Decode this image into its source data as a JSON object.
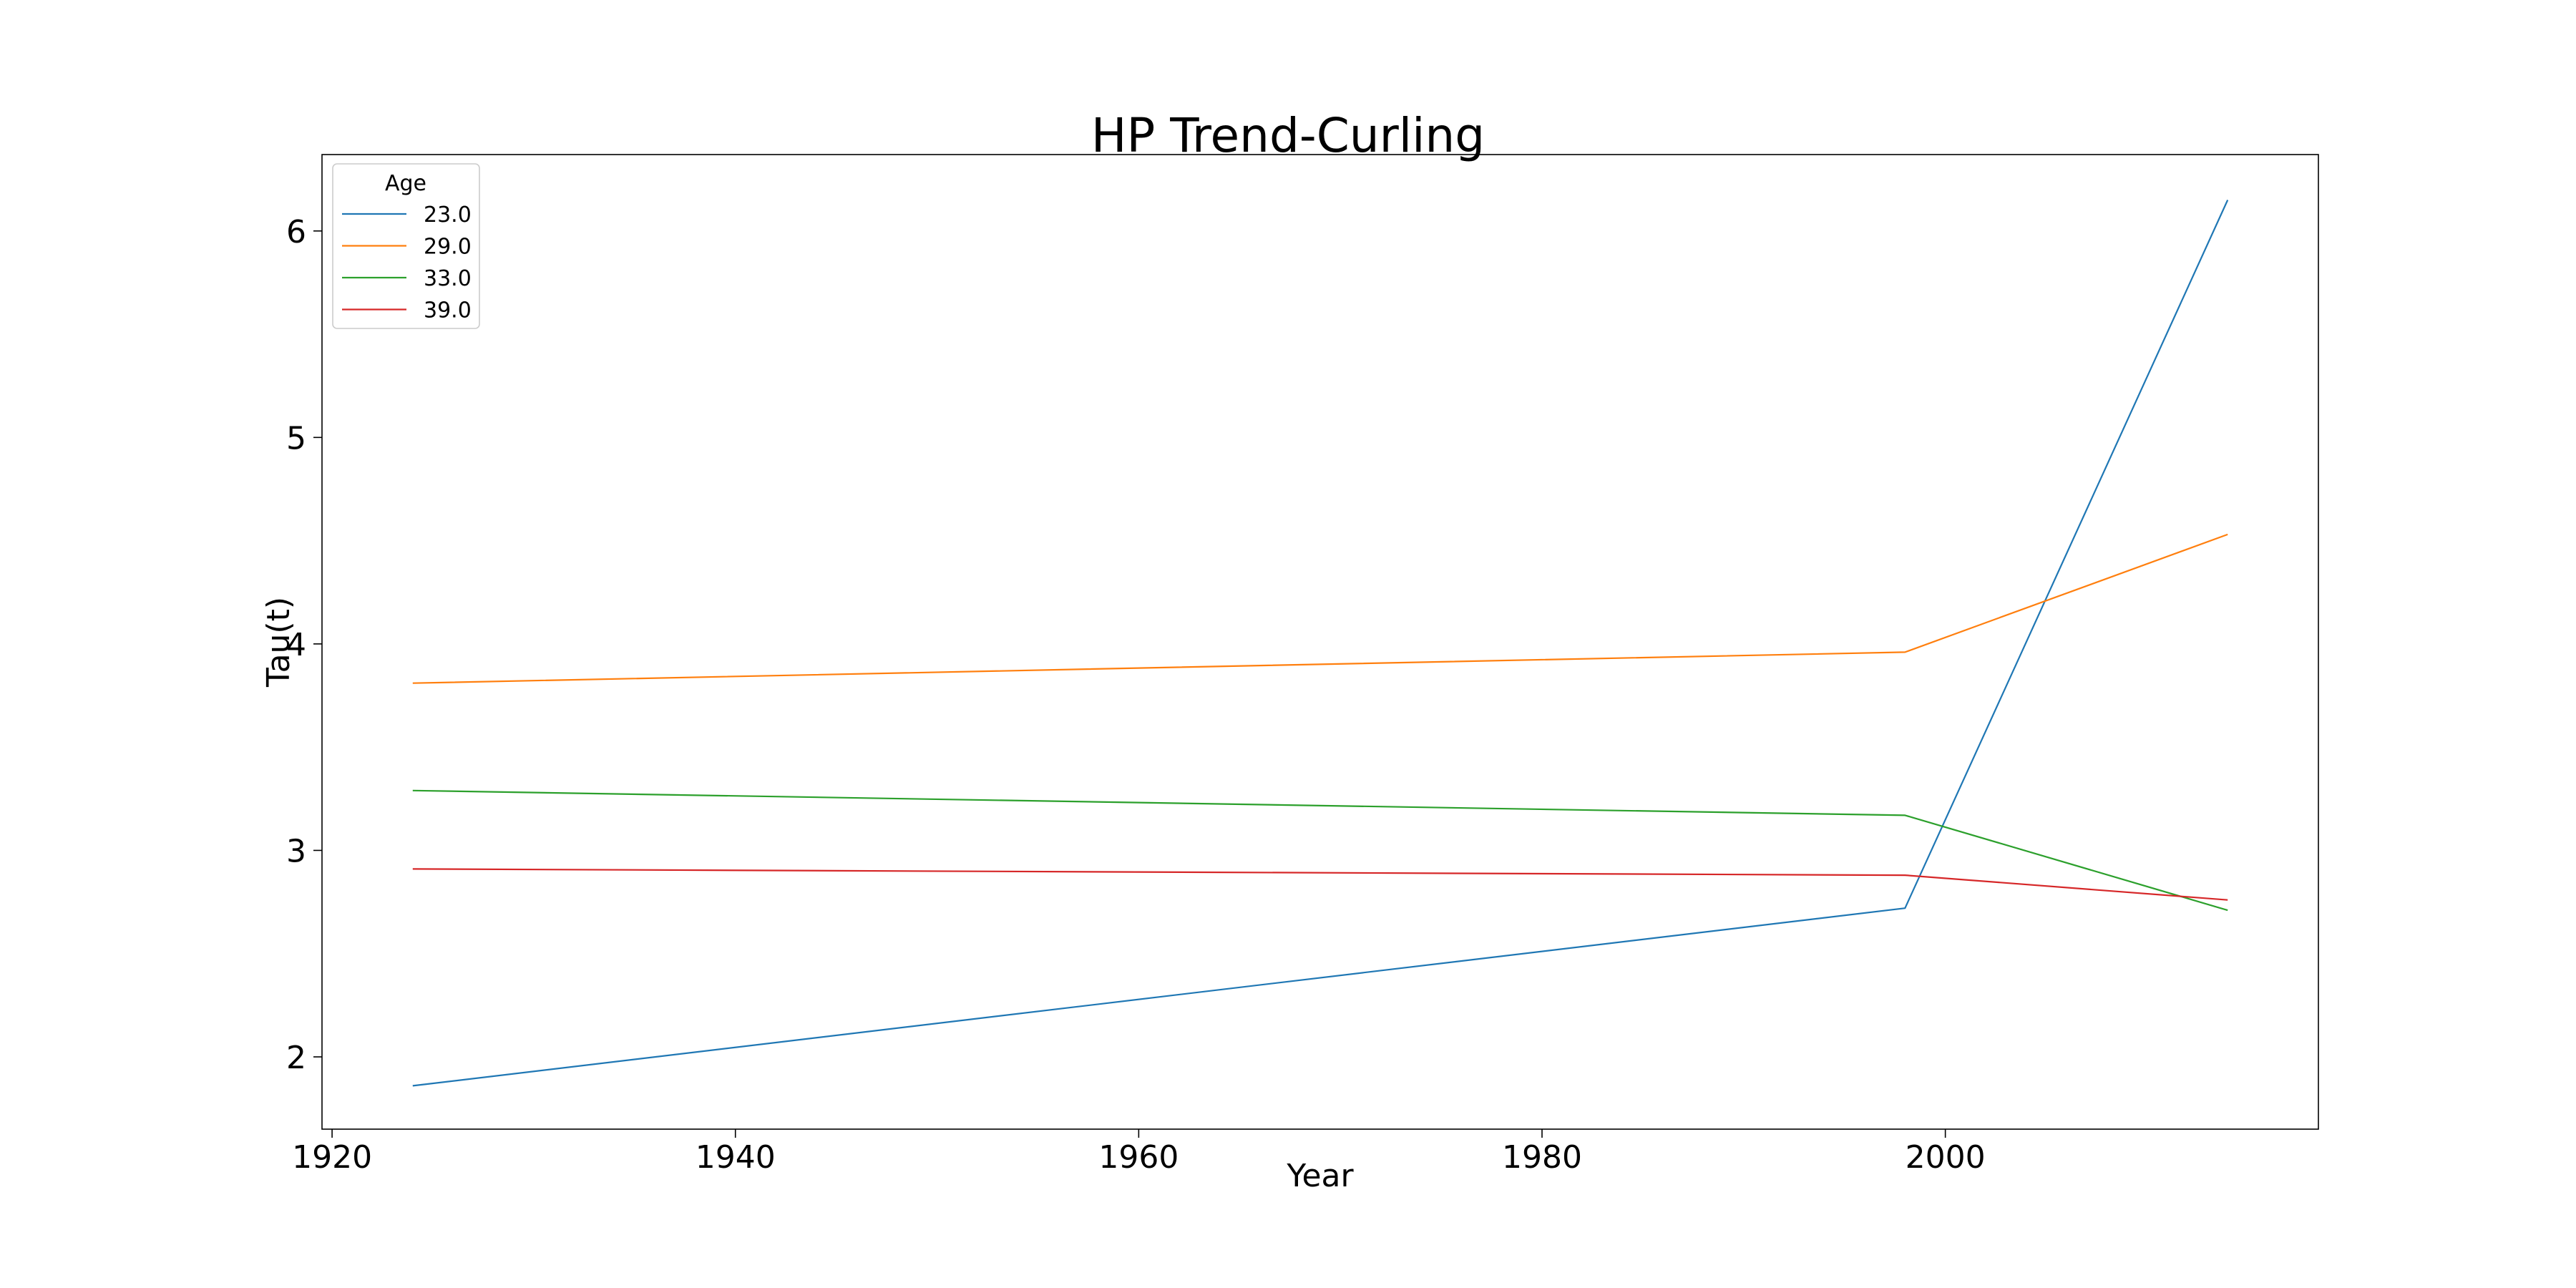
{
  "chart_data": {
    "type": "line",
    "title": "HP Trend-Curling",
    "xlabel": "Year",
    "ylabel": "Tau(t)",
    "xlim": [
      1919.5,
      2018.5
    ],
    "ylim": [
      1.65,
      6.37
    ],
    "xticks": [
      1920,
      1940,
      1960,
      1980,
      2000
    ],
    "yticks": [
      2,
      3,
      4,
      5,
      6
    ],
    "x": [
      1924,
      1998,
      2014
    ],
    "grid": false,
    "legend": {
      "title": "Age",
      "placement": "top-left"
    },
    "series": [
      {
        "name": "23.0",
        "color": "#1f77b4",
        "values": [
          1.86,
          2.72,
          6.15
        ]
      },
      {
        "name": "29.0",
        "color": "#ff7f0e",
        "values": [
          3.81,
          3.96,
          4.53
        ]
      },
      {
        "name": "33.0",
        "color": "#2ca02c",
        "values": [
          3.29,
          3.17,
          2.71
        ]
      },
      {
        "name": "39.0",
        "color": "#d62728",
        "values": [
          2.91,
          2.88,
          2.76
        ]
      }
    ]
  }
}
